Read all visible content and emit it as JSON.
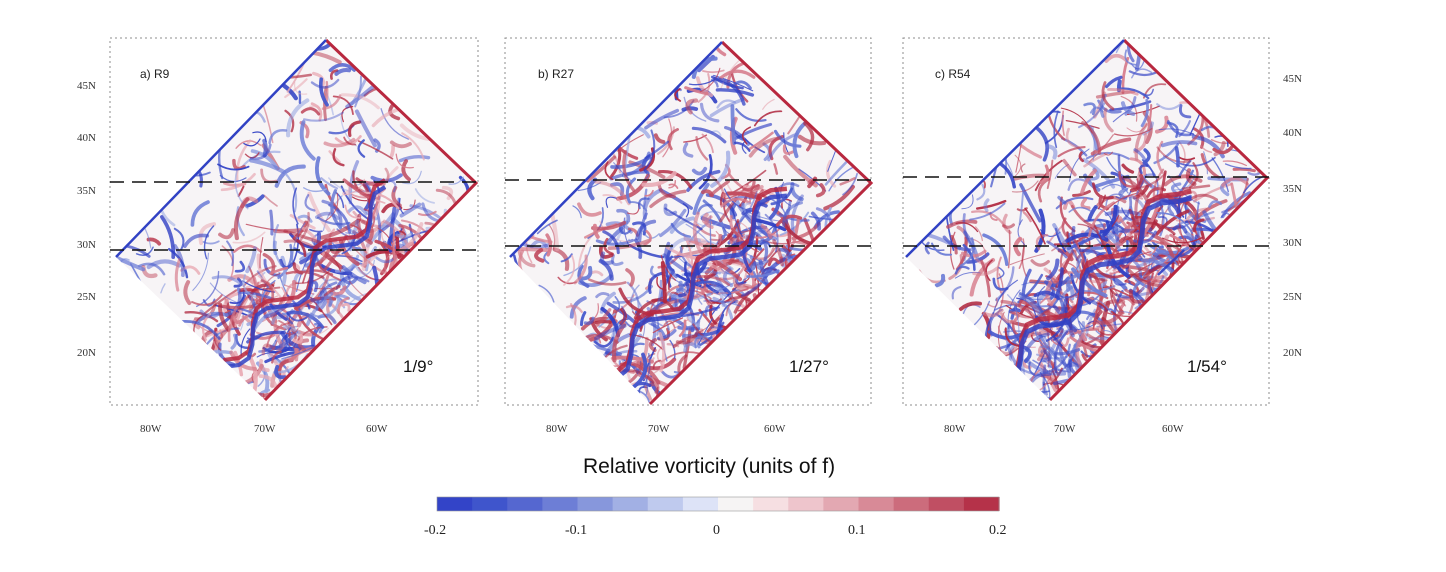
{
  "panels": [
    {
      "label": "a) R9",
      "resolution": "1/9°",
      "y_ticks": [
        "45N",
        "40N",
        "35N",
        "30N",
        "25N",
        "20N"
      ],
      "x_ticks": [
        "80W",
        "70W",
        "60W"
      ],
      "intensity": 0.55
    },
    {
      "label": "b) R27",
      "resolution": "1/27°",
      "y_ticks": [],
      "x_ticks": [
        "80W",
        "70W",
        "60W"
      ],
      "intensity": 0.75
    },
    {
      "label": "c) R54",
      "resolution": "1/54°",
      "y_ticks": [
        "45N",
        "40N",
        "35N",
        "30N",
        "25N",
        "20N"
      ],
      "x_ticks": [
        "80W",
        "70W",
        "60W"
      ],
      "intensity": 1.0
    }
  ],
  "colorbar": {
    "title": "Relative vorticity (units of f)",
    "ticks": [
      "-0.2",
      "-0.1",
      "0",
      "0.1",
      "0.2"
    ],
    "range": [
      -0.2,
      0.2
    ],
    "colors": [
      "#3344c8",
      "#3f55cc",
      "#5567d0",
      "#6d7ed6",
      "#8797dc",
      "#a2b0e4",
      "#bfcaee",
      "#dde3f7",
      "#f6f4f4",
      "#f6dfe2",
      "#eec5cc",
      "#e3a8b2",
      "#d88a97",
      "#cc6c7c",
      "#c04f63",
      "#b53249"
    ]
  },
  "dashed_lines": [
    "35N",
    "30N"
  ]
}
